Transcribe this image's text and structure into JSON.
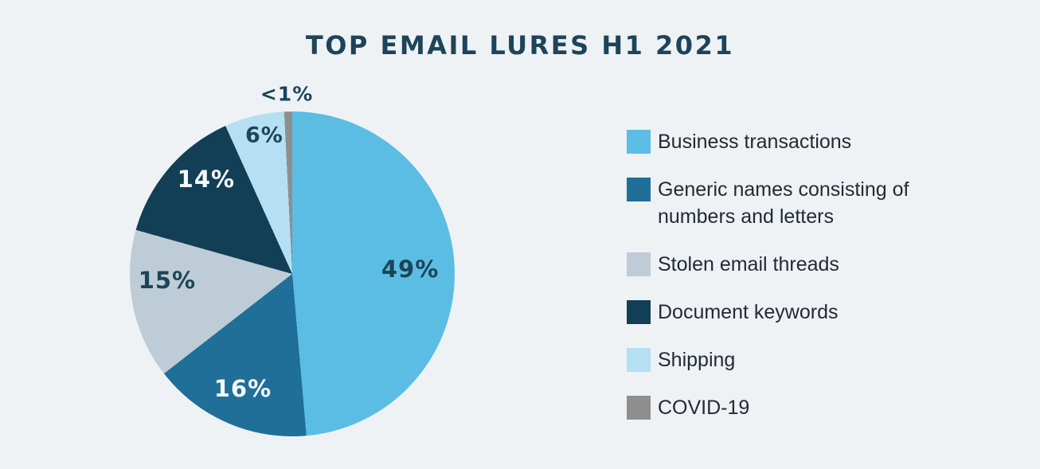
{
  "title": "TOP EMAIL LURES H1 2021",
  "colors": {
    "background": "#eef2f5",
    "title_text": "#1d4458",
    "legend_text": "#222a33"
  },
  "chart_data": {
    "type": "pie",
    "title": "TOP EMAIL LURES H1 2021",
    "legend_position": "right",
    "start_angle_deg": 0,
    "direction": "clockwise",
    "slices": [
      {
        "label": "Business transactions",
        "display_value": "49%",
        "value": 49,
        "color": "#5bbde4",
        "label_color": "#1d4458",
        "label_size": 29,
        "label_x": 0.863,
        "label_y": 0.485
      },
      {
        "label": "Generic names consisting of numbers and letters",
        "display_value": "16%",
        "value": 16,
        "color": "#1f6f98",
        "label_color": "#f4f8fa",
        "label_size": 29,
        "label_x": 0.348,
        "label_y": 0.853
      },
      {
        "label": "Stolen email threads",
        "display_value": "15%",
        "value": 15,
        "color": "#bdccd6",
        "label_color": "#1d4458",
        "label_size": 29,
        "label_x": 0.115,
        "label_y": 0.52
      },
      {
        "label": "Document keywords",
        "display_value": "14%",
        "value": 14,
        "color": "#123f55",
        "label_color": "#f4f8fa",
        "label_size": 29,
        "label_x": 0.235,
        "label_y": 0.208
      },
      {
        "label": "Shipping",
        "display_value": "6%",
        "value": 6,
        "color": "#b5dff2",
        "label_color": "#1d4458",
        "label_size": 27,
        "label_x": 0.414,
        "label_y": 0.074
      },
      {
        "label": "COVID-19",
        "display_value": "<1%",
        "value": 0.8,
        "color": "#8e8e8e",
        "label_color": "#1d4458",
        "label_size": 25,
        "label_x": 0.483,
        "label_y": -0.054
      }
    ]
  }
}
